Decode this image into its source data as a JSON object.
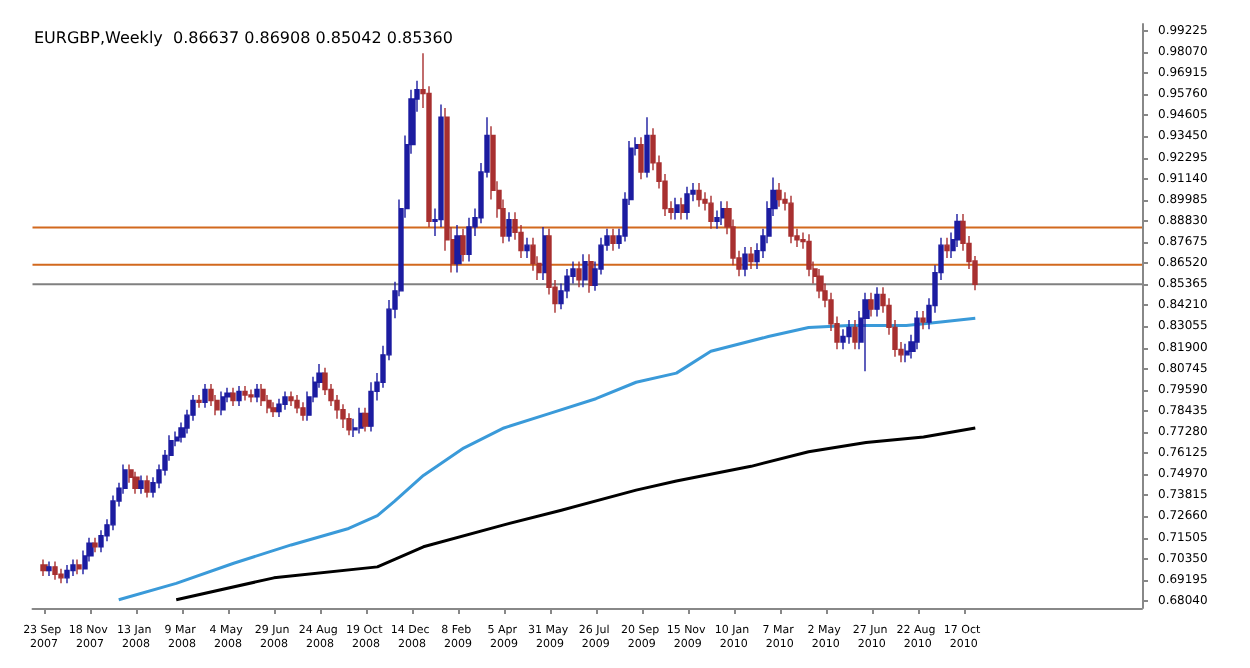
{
  "chart_data": {
    "type": "candlestick",
    "title": "EURGBP,Weekly  0.86637 0.86908 0.85042 0.85360",
    "x": [
      "2007-09-23",
      "2007-09-30",
      "2007-10-07",
      "2007-10-14",
      "2007-10-21",
      "2007-10-28",
      "2007-11-04",
      "2007-11-11",
      "2007-11-18",
      "2007-11-25",
      "2007-12-02",
      "2007-12-09",
      "2007-12-16",
      "2007-12-23",
      "2007-12-30",
      "2008-01-06",
      "2008-01-13",
      "2008-01-20",
      "2008-01-27",
      "2008-02-03",
      "2008-02-10",
      "2008-02-17",
      "2008-02-24",
      "2008-03-02",
      "2008-03-09",
      "2008-03-16",
      "2008-03-23",
      "2008-03-30",
      "2008-04-06",
      "2008-04-13",
      "2008-04-20",
      "2008-04-27",
      "2008-05-04",
      "2008-05-11",
      "2008-05-18",
      "2008-05-25",
      "2008-06-01",
      "2008-06-08",
      "2008-06-15",
      "2008-06-22",
      "2008-06-29",
      "2008-07-06",
      "2008-07-13",
      "2008-07-20",
      "2008-07-27",
      "2008-08-03",
      "2008-08-10",
      "2008-08-17",
      "2008-08-24",
      "2008-08-31",
      "2008-09-07",
      "2008-09-14",
      "2008-09-21",
      "2008-09-28",
      "2008-10-05",
      "2008-10-12",
      "2008-10-19",
      "2008-10-26",
      "2008-11-02",
      "2008-11-09",
      "2008-11-16",
      "2008-11-23",
      "2008-11-30",
      "2008-12-07",
      "2008-12-14",
      "2008-12-21",
      "2008-12-28",
      "2009-01-04",
      "2009-01-11",
      "2009-01-18",
      "2009-01-25",
      "2009-02-01",
      "2009-02-08",
      "2009-02-15",
      "2009-02-22",
      "2009-03-01",
      "2009-03-08",
      "2009-03-15",
      "2009-03-22",
      "2009-03-29",
      "2009-04-05",
      "2009-04-12",
      "2009-04-19",
      "2009-04-26",
      "2009-05-03",
      "2009-05-10",
      "2009-05-17",
      "2009-05-24",
      "2009-05-31",
      "2009-06-07",
      "2009-06-14",
      "2009-06-21",
      "2009-06-28",
      "2009-07-05",
      "2009-07-12",
      "2009-07-19",
      "2009-07-26",
      "2009-08-02",
      "2009-08-09",
      "2009-08-16",
      "2009-08-23",
      "2009-08-30",
      "2009-09-06",
      "2009-09-13",
      "2009-09-20",
      "2009-09-27",
      "2009-10-04",
      "2009-10-11",
      "2009-10-18",
      "2009-10-25",
      "2009-11-01",
      "2009-11-08",
      "2009-11-15",
      "2009-11-22",
      "2009-11-29",
      "2009-12-06",
      "2009-12-13",
      "2009-12-20",
      "2009-12-27",
      "2010-01-03",
      "2010-01-10",
      "2010-01-17",
      "2010-01-24",
      "2010-01-31",
      "2010-02-07",
      "2010-02-14",
      "2010-02-21",
      "2010-02-28",
      "2010-03-07",
      "2010-03-14",
      "2010-03-21",
      "2010-03-28",
      "2010-04-04",
      "2010-04-11",
      "2010-04-18",
      "2010-04-25",
      "2010-05-02",
      "2010-05-09",
      "2010-05-16",
      "2010-05-23",
      "2010-05-30",
      "2010-06-06",
      "2010-06-13",
      "2010-06-20",
      "2010-06-27",
      "2010-07-04",
      "2010-07-11",
      "2010-07-18",
      "2010-07-25",
      "2010-08-01",
      "2010-08-08",
      "2010-08-15",
      "2010-08-22",
      "2010-08-29",
      "2010-09-05",
      "2010-09-12",
      "2010-09-19",
      "2010-09-26",
      "2010-10-03",
      "2010-10-10",
      "2010-10-17",
      "2010-10-24",
      "2010-10-31"
    ],
    "series": [
      {
        "type": "candlestick",
        "colors": [
          "#a83030",
          "#1c1ca0",
          "#a83030",
          "#a83030",
          "#1c1ca0",
          "#1c1ca0",
          "#a83030",
          "#1c1ca0",
          "#1c1ca0",
          "#a83030",
          "#1c1ca0",
          "#1c1ca0",
          "#1c1ca0",
          "#1c1ca0",
          "#1c1ca0",
          "#a83030",
          "#a83030",
          "#1c1ca0",
          "#a83030",
          "#1c1ca0",
          "#1c1ca0",
          "#1c1ca0",
          "#1c1ca0",
          "#1c1ca0",
          "#1c1ca0",
          "#1c1ca0",
          "#1c1ca0",
          "#a83030",
          "#1c1ca0",
          "#a83030",
          "#a83030",
          "#1c1ca0",
          "#1c1ca0",
          "#a83030",
          "#1c1ca0",
          "#a83030",
          "#a83030",
          "#1c1ca0",
          "#a83030",
          "#a83030",
          "#a83030",
          "#1c1ca0",
          "#1c1ca0",
          "#a83030",
          "#a83030",
          "#a83030",
          "#1c1ca0",
          "#1c1ca0",
          "#1c1ca0",
          "#a83030",
          "#a83030",
          "#a83030",
          "#a83030",
          "#a83030",
          "#1c1ca0",
          "#1c1ca0",
          "#a83030",
          "#1c1ca0",
          "#1c1ca0",
          "#1c1ca0",
          "#1c1ca0",
          "#1c1ca0",
          "#1c1ca0",
          "#1c1ca0",
          "#1c1ca0",
          "#1c1ca0",
          "#a83030",
          "#a83030",
          "#1c1ca0",
          "#1c1ca0",
          "#a83030",
          "#a83030",
          "#1c1ca0",
          "#a83030",
          "#1c1ca0",
          "#1c1ca0",
          "#1c1ca0",
          "#1c1ca0",
          "#a83030",
          "#a83030",
          "#a83030",
          "#1c1ca0",
          "#a83030",
          "#a83030",
          "#1c1ca0",
          "#a83030",
          "#a83030",
          "#1c1ca0",
          "#a83030",
          "#a83030",
          "#1c1ca0",
          "#1c1ca0",
          "#1c1ca0",
          "#a83030",
          "#1c1ca0",
          "#a83030",
          "#1c1ca0",
          "#1c1ca0",
          "#1c1ca0",
          "#a83030",
          "#1c1ca0",
          "#1c1ca0",
          "#1c1ca0",
          "#1c1ca0",
          "#a83030",
          "#1c1ca0",
          "#a83030",
          "#a83030",
          "#a83030",
          "#a83030",
          "#1c1ca0",
          "#a83030",
          "#1c1ca0",
          "#1c1ca0",
          "#a83030",
          "#a83030",
          "#a83030",
          "#1c1ca0",
          "#1c1ca0",
          "#a83030",
          "#a83030",
          "#a83030",
          "#1c1ca0",
          "#a83030",
          "#1c1ca0",
          "#1c1ca0",
          "#1c1ca0",
          "#1c1ca0",
          "#a83030",
          "#a83030",
          "#a83030",
          "#a83030",
          "#a83030",
          "#a83030",
          "#a83030",
          "#a83030",
          "#a83030",
          "#a83030",
          "#a83030",
          "#1c1ca0",
          "#1c1ca0",
          "#a83030",
          "#1c1ca0",
          "#1c1ca0",
          "#a83030",
          "#1c1ca0",
          "#a83030",
          "#a83030",
          "#a83030",
          "#a83030",
          "#1c1ca0",
          "#1c1ca0",
          "#1c1ca0",
          "#a83030",
          "#1c1ca0",
          "#1c1ca0",
          "#1c1ca0",
          "#a83030",
          "#1c1ca0",
          "#1c1ca0",
          "#a83030",
          "#a83030",
          "#a83030"
        ],
        "ohlc": [
          [
            0.7,
            0.703,
            0.694,
            0.697
          ],
          [
            0.697,
            0.702,
            0.694,
            0.699
          ],
          [
            0.699,
            0.702,
            0.692,
            0.695
          ],
          [
            0.695,
            0.698,
            0.69,
            0.693
          ],
          [
            0.693,
            0.7,
            0.69,
            0.697
          ],
          [
            0.697,
            0.703,
            0.694,
            0.7
          ],
          [
            0.7,
            0.703,
            0.695,
            0.698
          ],
          [
            0.698,
            0.708,
            0.695,
            0.705
          ],
          [
            0.705,
            0.715,
            0.702,
            0.712
          ],
          [
            0.712,
            0.715,
            0.707,
            0.71
          ],
          [
            0.71,
            0.719,
            0.707,
            0.716
          ],
          [
            0.716,
            0.725,
            0.713,
            0.722
          ],
          [
            0.722,
            0.738,
            0.719,
            0.735
          ],
          [
            0.735,
            0.745,
            0.732,
            0.742
          ],
          [
            0.742,
            0.755,
            0.739,
            0.752
          ],
          [
            0.752,
            0.755,
            0.745,
            0.748
          ],
          [
            0.748,
            0.751,
            0.739,
            0.742
          ],
          [
            0.742,
            0.749,
            0.739,
            0.746
          ],
          [
            0.746,
            0.749,
            0.737,
            0.74
          ],
          [
            0.74,
            0.748,
            0.737,
            0.745
          ],
          [
            0.745,
            0.755,
            0.742,
            0.752
          ],
          [
            0.752,
            0.763,
            0.749,
            0.76
          ],
          [
            0.76,
            0.771,
            0.757,
            0.768
          ],
          [
            0.768,
            0.773,
            0.765,
            0.77
          ],
          [
            0.77,
            0.778,
            0.767,
            0.775
          ],
          [
            0.775,
            0.785,
            0.772,
            0.782
          ],
          [
            0.782,
            0.793,
            0.779,
            0.79
          ],
          [
            0.79,
            0.793,
            0.786,
            0.789
          ],
          [
            0.789,
            0.799,
            0.786,
            0.796
          ],
          [
            0.796,
            0.799,
            0.787,
            0.79
          ],
          [
            0.79,
            0.793,
            0.782,
            0.785
          ],
          [
            0.785,
            0.795,
            0.782,
            0.792
          ],
          [
            0.792,
            0.797,
            0.789,
            0.794
          ],
          [
            0.794,
            0.797,
            0.787,
            0.79
          ],
          [
            0.79,
            0.798,
            0.787,
            0.795
          ],
          [
            0.795,
            0.798,
            0.79,
            0.793
          ],
          [
            0.793,
            0.796,
            0.789,
            0.792
          ],
          [
            0.792,
            0.799,
            0.789,
            0.796
          ],
          [
            0.796,
            0.799,
            0.787,
            0.79
          ],
          [
            0.79,
            0.793,
            0.783,
            0.786
          ],
          [
            0.786,
            0.789,
            0.781,
            0.784
          ],
          [
            0.784,
            0.791,
            0.781,
            0.788
          ],
          [
            0.788,
            0.795,
            0.785,
            0.792
          ],
          [
            0.792,
            0.795,
            0.787,
            0.79
          ],
          [
            0.79,
            0.793,
            0.783,
            0.786
          ],
          [
            0.786,
            0.789,
            0.779,
            0.782
          ],
          [
            0.782,
            0.795,
            0.779,
            0.792
          ],
          [
            0.792,
            0.803,
            0.789,
            0.8
          ],
          [
            0.8,
            0.81,
            0.797,
            0.805
          ],
          [
            0.805,
            0.808,
            0.793,
            0.796
          ],
          [
            0.796,
            0.799,
            0.787,
            0.79
          ],
          [
            0.79,
            0.793,
            0.78,
            0.785
          ],
          [
            0.785,
            0.788,
            0.775,
            0.78
          ],
          [
            0.78,
            0.783,
            0.771,
            0.774
          ],
          [
            0.774,
            0.78,
            0.77,
            0.775
          ],
          [
            0.775,
            0.786,
            0.772,
            0.783
          ],
          [
            0.783,
            0.786,
            0.773,
            0.776
          ],
          [
            0.776,
            0.8,
            0.773,
            0.795
          ],
          [
            0.795,
            0.805,
            0.79,
            0.8
          ],
          [
            0.8,
            0.82,
            0.797,
            0.815
          ],
          [
            0.815,
            0.845,
            0.812,
            0.84
          ],
          [
            0.84,
            0.855,
            0.835,
            0.85
          ],
          [
            0.85,
            0.9,
            0.847,
            0.895
          ],
          [
            0.895,
            0.935,
            0.89,
            0.93
          ],
          [
            0.93,
            0.96,
            0.925,
            0.955
          ],
          [
            0.955,
            0.965,
            0.948,
            0.96
          ],
          [
            0.96,
            0.98,
            0.95,
            0.958
          ],
          [
            0.958,
            0.962,
            0.885,
            0.888
          ],
          [
            0.888,
            0.895,
            0.88,
            0.889
          ],
          [
            0.889,
            0.952,
            0.885,
            0.945
          ],
          [
            0.945,
            0.95,
            0.872,
            0.878
          ],
          [
            0.878,
            0.885,
            0.86,
            0.865
          ],
          [
            0.865,
            0.886,
            0.86,
            0.88
          ],
          [
            0.88,
            0.884,
            0.866,
            0.87
          ],
          [
            0.87,
            0.89,
            0.866,
            0.885
          ],
          [
            0.885,
            0.895,
            0.88,
            0.89
          ],
          [
            0.89,
            0.92,
            0.887,
            0.915
          ],
          [
            0.915,
            0.945,
            0.912,
            0.935
          ],
          [
            0.935,
            0.94,
            0.9,
            0.905
          ],
          [
            0.905,
            0.91,
            0.89,
            0.895
          ],
          [
            0.895,
            0.9,
            0.876,
            0.88
          ],
          [
            0.88,
            0.893,
            0.877,
            0.889
          ],
          [
            0.889,
            0.893,
            0.878,
            0.882
          ],
          [
            0.882,
            0.886,
            0.868,
            0.872
          ],
          [
            0.872,
            0.879,
            0.868,
            0.875
          ],
          [
            0.875,
            0.879,
            0.861,
            0.865
          ],
          [
            0.865,
            0.869,
            0.856,
            0.86
          ],
          [
            0.86,
            0.885,
            0.856,
            0.88
          ],
          [
            0.88,
            0.884,
            0.848,
            0.852
          ],
          [
            0.852,
            0.856,
            0.838,
            0.843
          ],
          [
            0.843,
            0.854,
            0.84,
            0.85
          ],
          [
            0.85,
            0.862,
            0.846,
            0.858
          ],
          [
            0.858,
            0.866,
            0.854,
            0.862
          ],
          [
            0.862,
            0.866,
            0.852,
            0.856
          ],
          [
            0.856,
            0.87,
            0.852,
            0.866
          ],
          [
            0.866,
            0.87,
            0.849,
            0.853
          ],
          [
            0.853,
            0.866,
            0.85,
            0.862
          ],
          [
            0.862,
            0.879,
            0.859,
            0.875
          ],
          [
            0.875,
            0.884,
            0.872,
            0.88
          ],
          [
            0.88,
            0.884,
            0.872,
            0.876
          ],
          [
            0.876,
            0.884,
            0.873,
            0.88
          ],
          [
            0.88,
            0.904,
            0.877,
            0.9
          ],
          [
            0.9,
            0.932,
            0.897,
            0.928
          ],
          [
            0.928,
            0.934,
            0.924,
            0.93
          ],
          [
            0.93,
            0.934,
            0.911,
            0.915
          ],
          [
            0.915,
            0.945,
            0.912,
            0.935
          ],
          [
            0.935,
            0.939,
            0.916,
            0.92
          ],
          [
            0.92,
            0.924,
            0.906,
            0.91
          ],
          [
            0.91,
            0.914,
            0.891,
            0.895
          ],
          [
            0.895,
            0.899,
            0.889,
            0.893
          ],
          [
            0.893,
            0.901,
            0.889,
            0.897
          ],
          [
            0.897,
            0.901,
            0.889,
            0.893
          ],
          [
            0.893,
            0.907,
            0.889,
            0.903
          ],
          [
            0.903,
            0.909,
            0.899,
            0.905
          ],
          [
            0.905,
            0.909,
            0.896,
            0.9
          ],
          [
            0.9,
            0.904,
            0.894,
            0.898
          ],
          [
            0.898,
            0.902,
            0.884,
            0.888
          ],
          [
            0.888,
            0.894,
            0.884,
            0.89
          ],
          [
            0.89,
            0.899,
            0.886,
            0.895
          ],
          [
            0.895,
            0.899,
            0.881,
            0.885
          ],
          [
            0.885,
            0.889,
            0.864,
            0.868
          ],
          [
            0.868,
            0.872,
            0.858,
            0.862
          ],
          [
            0.862,
            0.874,
            0.858,
            0.87
          ],
          [
            0.87,
            0.874,
            0.862,
            0.866
          ],
          [
            0.866,
            0.876,
            0.862,
            0.872
          ],
          [
            0.872,
            0.884,
            0.868,
            0.88
          ],
          [
            0.88,
            0.899,
            0.876,
            0.895
          ],
          [
            0.895,
            0.912,
            0.891,
            0.905
          ],
          [
            0.905,
            0.909,
            0.896,
            0.9
          ],
          [
            0.9,
            0.904,
            0.894,
            0.898
          ],
          [
            0.898,
            0.902,
            0.876,
            0.88
          ],
          [
            0.88,
            0.884,
            0.874,
            0.878
          ],
          [
            0.878,
            0.882,
            0.873,
            0.877
          ],
          [
            0.877,
            0.881,
            0.858,
            0.862
          ],
          [
            0.862,
            0.866,
            0.854,
            0.858
          ],
          [
            0.858,
            0.862,
            0.846,
            0.85
          ],
          [
            0.85,
            0.854,
            0.841,
            0.845
          ],
          [
            0.845,
            0.849,
            0.828,
            0.832
          ],
          [
            0.832,
            0.836,
            0.818,
            0.822
          ],
          [
            0.822,
            0.829,
            0.818,
            0.825
          ],
          [
            0.825,
            0.834,
            0.821,
            0.83
          ],
          [
            0.83,
            0.834,
            0.818,
            0.822
          ],
          [
            0.822,
            0.839,
            0.818,
            0.835
          ],
          [
            0.835,
            0.849,
            0.806,
            0.845
          ],
          [
            0.845,
            0.849,
            0.836,
            0.84
          ],
          [
            0.84,
            0.852,
            0.836,
            0.848
          ],
          [
            0.848,
            0.852,
            0.838,
            0.842
          ],
          [
            0.842,
            0.846,
            0.826,
            0.83
          ],
          [
            0.83,
            0.834,
            0.814,
            0.818
          ],
          [
            0.818,
            0.822,
            0.811,
            0.815
          ],
          [
            0.815,
            0.821,
            0.811,
            0.817
          ],
          [
            0.817,
            0.826,
            0.813,
            0.822
          ],
          [
            0.822,
            0.839,
            0.818,
            0.835
          ],
          [
            0.835,
            0.839,
            0.829,
            0.833
          ],
          [
            0.833,
            0.846,
            0.829,
            0.842
          ],
          [
            0.842,
            0.864,
            0.838,
            0.86
          ],
          [
            0.86,
            0.879,
            0.856,
            0.875
          ],
          [
            0.875,
            0.879,
            0.868,
            0.872
          ],
          [
            0.872,
            0.882,
            0.868,
            0.878
          ],
          [
            0.878,
            0.892,
            0.874,
            0.888
          ],
          [
            0.888,
            0.892,
            0.872,
            0.876
          ],
          [
            0.876,
            0.88,
            0.862,
            0.866
          ],
          [
            0.8664,
            0.8691,
            0.8504,
            0.8536
          ]
        ]
      },
      {
        "type": "line",
        "color": "#3a9ad9",
        "x": [
          "2007-12-23",
          "2008-03-02",
          "2008-05-11",
          "2008-07-20",
          "2008-09-28",
          "2008-11-02",
          "2008-11-23",
          "2008-12-28",
          "2009-02-15",
          "2009-04-05",
          "2009-05-31",
          "2009-07-26",
          "2009-09-13",
          "2009-11-01",
          "2009-12-13",
          "2010-02-21",
          "2010-04-11",
          "2010-05-30",
          "2010-08-08",
          "2010-09-19",
          "2010-10-31"
        ],
        "values": [
          0.681,
          0.69,
          0.701,
          0.711,
          0.72,
          0.727,
          0.735,
          0.749,
          0.764,
          0.775,
          0.783,
          0.791,
          0.8,
          0.805,
          0.817,
          0.825,
          0.83,
          0.831,
          0.831,
          0.833,
          0.835
        ]
      },
      {
        "type": "line",
        "color": "#000000",
        "x": [
          "2008-03-02",
          "2008-06-29",
          "2008-11-02",
          "2008-12-28",
          "2009-04-05",
          "2009-06-14",
          "2009-09-13",
          "2009-11-01",
          "2010-01-31",
          "2010-04-11",
          "2010-06-20",
          "2010-08-29",
          "2010-10-31"
        ],
        "values": [
          0.681,
          0.693,
          0.699,
          0.71,
          0.722,
          0.73,
          0.741,
          0.746,
          0.754,
          0.762,
          0.767,
          0.77,
          0.775
        ]
      }
    ],
    "xlim": [
      "2007-09-09",
      "2011-05-22"
    ],
    "xticks": [
      {
        "value": "2007-09-23",
        "label": "23 Sep 2007"
      },
      {
        "value": "2007-11-18",
        "label": "18 Nov 2007"
      },
      {
        "value": "2008-01-13",
        "label": "13 Jan 2008"
      },
      {
        "value": "2008-03-09",
        "label": "9 Mar 2008"
      },
      {
        "value": "2008-05-04",
        "label": "4 May 2008"
      },
      {
        "value": "2008-06-29",
        "label": "29 Jun 2008"
      },
      {
        "value": "2008-08-24",
        "label": "24 Aug 2008"
      },
      {
        "value": "2008-10-19",
        "label": "19 Oct 2008"
      },
      {
        "value": "2008-12-14",
        "label": "14 Dec 2008"
      },
      {
        "value": "2009-02-08",
        "label": "8 Feb 2009"
      },
      {
        "value": "2009-04-05",
        "label": "5 Apr 2009"
      },
      {
        "value": "2009-05-31",
        "label": "31 May 2009"
      },
      {
        "value": "2009-07-26",
        "label": "26 Jul 2009"
      },
      {
        "value": "2009-09-20",
        "label": "20 Sep 2009"
      },
      {
        "value": "2009-11-15",
        "label": "15 Nov 2009"
      },
      {
        "value": "2010-01-10",
        "label": "10 Jan 2010"
      },
      {
        "value": "2010-03-07",
        "label": "7 Mar 2010"
      },
      {
        "value": "2010-05-02",
        "label": "2 May 2010"
      },
      {
        "value": "2010-06-27",
        "label": "27 Jun 2010"
      },
      {
        "value": "2010-08-22",
        "label": "22 Aug 2010"
      },
      {
        "value": "2010-10-17",
        "label": "17 Oct 2010"
      }
    ],
    "ylim": [
      0.6765,
      0.996
    ],
    "yticks": [
      {
        "value": 0.6804,
        "label": "0.68040"
      },
      {
        "value": 0.69195,
        "label": "0.69195"
      },
      {
        "value": 0.7035,
        "label": "0.70350"
      },
      {
        "value": 0.71505,
        "label": "0.71505"
      },
      {
        "value": 0.7266,
        "label": "0.72660"
      },
      {
        "value": 0.73815,
        "label": "0.73815"
      },
      {
        "value": 0.7497,
        "label": "0.74970"
      },
      {
        "value": 0.76125,
        "label": "0.76125"
      },
      {
        "value": 0.7728,
        "label": "0.77280"
      },
      {
        "value": 0.78435,
        "label": "0.78435"
      },
      {
        "value": 0.7959,
        "label": "0.79590"
      },
      {
        "value": 0.80745,
        "label": "0.80745"
      },
      {
        "value": 0.819,
        "label": "0.81900"
      },
      {
        "value": 0.83055,
        "label": "0.83055"
      },
      {
        "value": 0.8421,
        "label": "0.84210"
      },
      {
        "value": 0.85365,
        "label": "0.85365"
      },
      {
        "value": 0.8652,
        "label": "0.86520"
      },
      {
        "value": 0.87675,
        "label": "0.87675"
      },
      {
        "value": 0.8883,
        "label": "0.88830"
      },
      {
        "value": 0.89985,
        "label": "0.89985"
      },
      {
        "value": 0.9114,
        "label": "0.91140"
      },
      {
        "value": 0.92295,
        "label": "0.92295"
      },
      {
        "value": 0.9345,
        "label": "0.93450"
      },
      {
        "value": 0.94605,
        "label": "0.94605"
      },
      {
        "value": 0.9576,
        "label": "0.95760"
      },
      {
        "value": 0.96915,
        "label": "0.96915"
      },
      {
        "value": 0.9807,
        "label": "0.98070"
      },
      {
        "value": 0.99225,
        "label": "0.99225"
      }
    ],
    "ref_lines": [
      {
        "axis": "y",
        "value": 0.8847,
        "color": "#d2691e"
      },
      {
        "axis": "y",
        "value": 0.8643,
        "color": "#d2691e"
      },
      {
        "axis": "y",
        "value": 0.8536,
        "color": "#808080"
      }
    ],
    "marker": "none"
  }
}
